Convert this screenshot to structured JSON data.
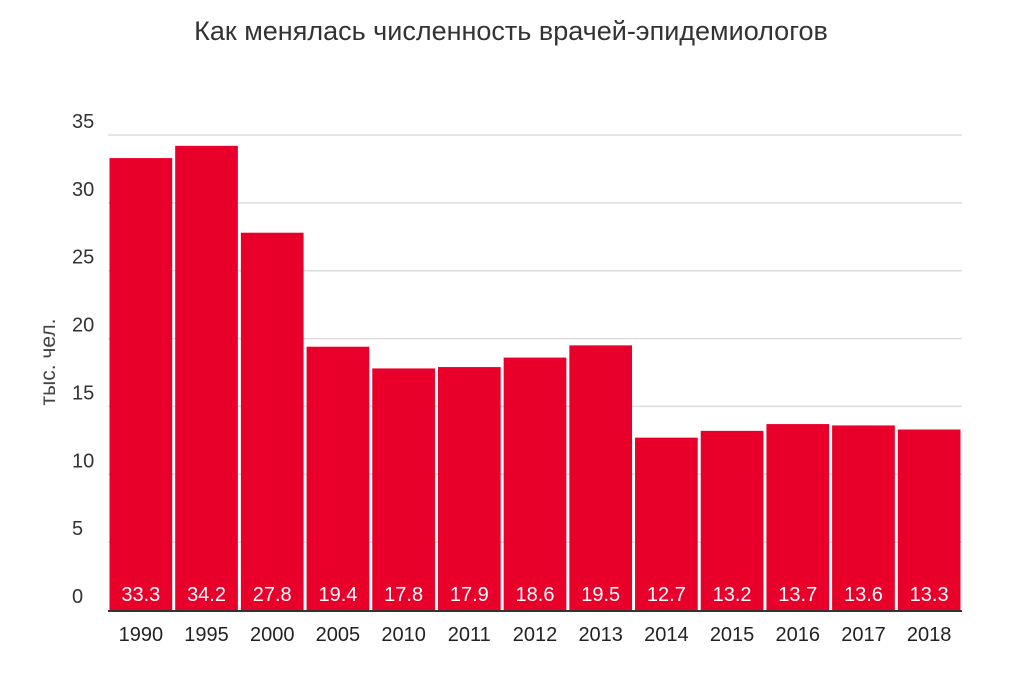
{
  "chart_data": {
    "type": "bar",
    "title": "Как менялась численность врачей-эпидемиологов",
    "ylabel": "тыс. чел.",
    "xlabel": "",
    "ylim": [
      0,
      35
    ],
    "yticks": [
      0,
      5,
      10,
      15,
      20,
      25,
      30,
      35
    ],
    "grid": true,
    "categories": [
      "1990",
      "1995",
      "2000",
      "2005",
      "2010",
      "2011",
      "2012",
      "2013",
      "2014",
      "2015",
      "2016",
      "2017",
      "2018"
    ],
    "values": [
      33.3,
      34.2,
      27.8,
      19.4,
      17.8,
      17.9,
      18.6,
      19.5,
      12.7,
      13.2,
      13.7,
      13.6,
      13.3
    ],
    "data_labels": [
      "33.3",
      "34.2",
      "27.8",
      "19.4",
      "17.8",
      "17.9",
      "18.6",
      "19.5",
      "12.7",
      "13.2",
      "13.7",
      "13.6",
      "13.3"
    ],
    "bar_color": "#e8002b",
    "gridline_color": "#dddddd"
  }
}
